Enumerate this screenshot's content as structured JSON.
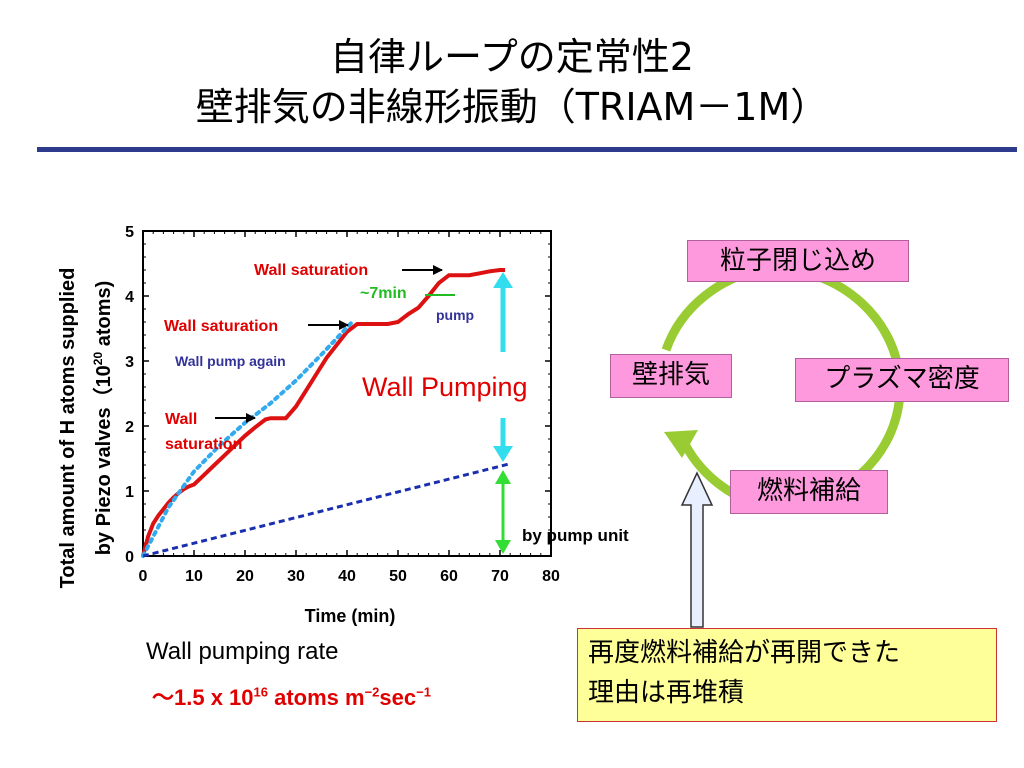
{
  "title": {
    "line1": "自律ループの定常性2",
    "line2": "壁排気の非線形振動（TRIAM－1M）"
  },
  "chart_data": {
    "type": "line",
    "xlabel": "Time (min)",
    "ylabel_line1": "Total amount of H atoms supplied",
    "ylabel_line2_pre": "by Piezo valves（10",
    "ylabel_line2_sup": "20",
    "ylabel_line2_post": " atoms)",
    "xlim": [
      0,
      80
    ],
    "ylim": [
      0,
      5
    ],
    "xticks": [
      0,
      10,
      20,
      30,
      40,
      50,
      60,
      70,
      80
    ],
    "yticks": [
      0,
      1,
      2,
      3,
      4,
      5
    ],
    "series": [
      {
        "color": "#dd1111",
        "style": "solid",
        "x": [
          0,
          1,
          2,
          3,
          4,
          5,
          6,
          7,
          8,
          9,
          10,
          12,
          14,
          16,
          18,
          20,
          22,
          24,
          25,
          27,
          28,
          30,
          32,
          34,
          36,
          38,
          40,
          42,
          44,
          48,
          50,
          52,
          54,
          56,
          58,
          60,
          62,
          64,
          66,
          68,
          70,
          71
        ],
        "y": [
          0,
          0.3,
          0.5,
          0.62,
          0.72,
          0.82,
          0.9,
          0.97,
          1.03,
          1.07,
          1.1,
          1.25,
          1.4,
          1.55,
          1.7,
          1.85,
          1.98,
          2.1,
          2.12,
          2.12,
          2.12,
          2.3,
          2.55,
          2.8,
          3.05,
          3.25,
          3.45,
          3.57,
          3.57,
          3.57,
          3.6,
          3.72,
          3.82,
          4.0,
          4.2,
          4.32,
          4.32,
          4.32,
          4.35,
          4.38,
          4.4,
          4.4
        ]
      },
      {
        "color": "#33aaee",
        "style": "dotted",
        "x": [
          0,
          5,
          10,
          15,
          20,
          25,
          30,
          35,
          41
        ],
        "y": [
          0,
          0.75,
          1.3,
          1.7,
          2.05,
          2.35,
          2.7,
          3.1,
          3.6
        ]
      },
      {
        "color": "#1a2fb0",
        "style": "dashed",
        "x": [
          0,
          72
        ],
        "y": [
          0,
          1.42
        ]
      }
    ],
    "annotations": {
      "wall_sat_top": "Wall saturation",
      "seven_min": "~7min",
      "wall_sat_mid": "Wall saturation",
      "pump": "pump",
      "wall_pump_again": "Wall pump again",
      "wall_sat_low_1": "Wall",
      "wall_sat_low_2": "saturation",
      "wall_pumping": "Wall Pumping",
      "by_pump_unit": "by pump unit"
    }
  },
  "cycle": {
    "top": "粒子閉じ込め",
    "left": "壁排気",
    "right": "プラズマ密度",
    "bottom": "燃料補給",
    "ring_color": "#99cc33"
  },
  "note": {
    "line1": "再度燃料補給が再開できた",
    "line2": "理由は再堆積"
  },
  "rate": {
    "label": "Wall pumping rate",
    "prefix": "～1.5 x 10",
    "exp1": "16",
    "mid": " atoms m",
    "exp2": "−2",
    "sec": "sec",
    "exp3": "−1"
  },
  "colors": {
    "title_rule": "#2e3a8c",
    "annotation_red": "#e00000",
    "annotation_blue": "#333399",
    "arrow_cyan": "#33ddee",
    "arrow_green": "#33dd33"
  }
}
